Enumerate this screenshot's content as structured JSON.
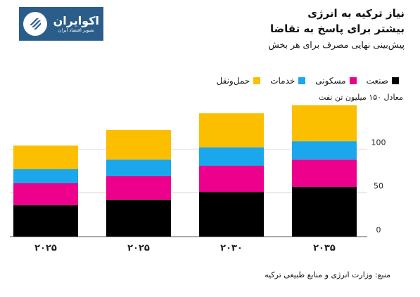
{
  "logo": {
    "name": "اکوایران",
    "tagline": "تصویر اقتصاد ایران",
    "color": "#2b5d8a"
  },
  "header": {
    "title_line1": "نیاز ترکیه به انرژی",
    "title_line2": "بیشتر برای پاسخ به تقاضا",
    "subtitle": "پیش‌بینی نهایی مصرف برای هر بخش"
  },
  "unit_label": "معادل ۱۵۰ میلیون تن نفت",
  "source": "منبع: وزارت انرژی و منابع طبیعی ترکیه",
  "chart_data": {
    "type": "bar",
    "stacked": true,
    "categories": [
      "۲۰۲۵",
      "۲۰۲۵",
      "۲۰۳۰",
      "۲۰۳۵"
    ],
    "series": [
      {
        "name": "صنعت",
        "color": "#000000",
        "values": [
          36,
          42,
          51,
          57
        ]
      },
      {
        "name": "مسکونی",
        "color": "#ec008c",
        "values": [
          25,
          27,
          30,
          31
        ]
      },
      {
        "name": "خدمات",
        "color": "#1aa7ec",
        "values": [
          16,
          19,
          21,
          21
        ]
      },
      {
        "name": "حمل‌ونقل",
        "color": "#fbbf00",
        "values": [
          27,
          34,
          39,
          41
        ]
      }
    ],
    "y_ticks": [
      {
        "value": 0,
        "label": "0"
      },
      {
        "value": 50,
        "label": "50"
      },
      {
        "value": 100,
        "label": "100"
      }
    ],
    "ylim": [
      0,
      150
    ],
    "grid": true,
    "legend_position": "top-right"
  }
}
